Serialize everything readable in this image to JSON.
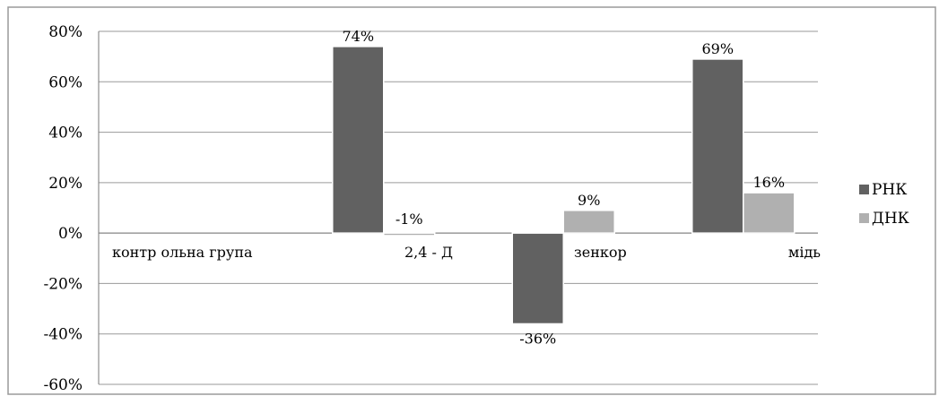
{
  "chart_data": {
    "type": "bar",
    "categories": [
      "контр ольна група",
      "2,4 - Д",
      "зенкор",
      "мідь"
    ],
    "series": [
      {
        "name": "РНК",
        "values": [
          0,
          74,
          -36,
          69
        ],
        "labels": [
          "",
          "74%",
          "-36%",
          "69%"
        ],
        "color": "#616161"
      },
      {
        "name": "ДНК",
        "values": [
          0,
          -1,
          9,
          16
        ],
        "labels": [
          "",
          "-1%",
          "9%",
          "16%"
        ],
        "color": "#b0b0b0"
      }
    ],
    "ylim": [
      -60,
      80
    ],
    "yticks": [
      "80%",
      "60%",
      "40%",
      "20%",
      "0%",
      "-20%",
      "-40%",
      "-60%"
    ],
    "ytick_values": [
      80,
      60,
      40,
      20,
      0,
      -20,
      -40,
      -60
    ],
    "grid": true,
    "legend": "right"
  }
}
